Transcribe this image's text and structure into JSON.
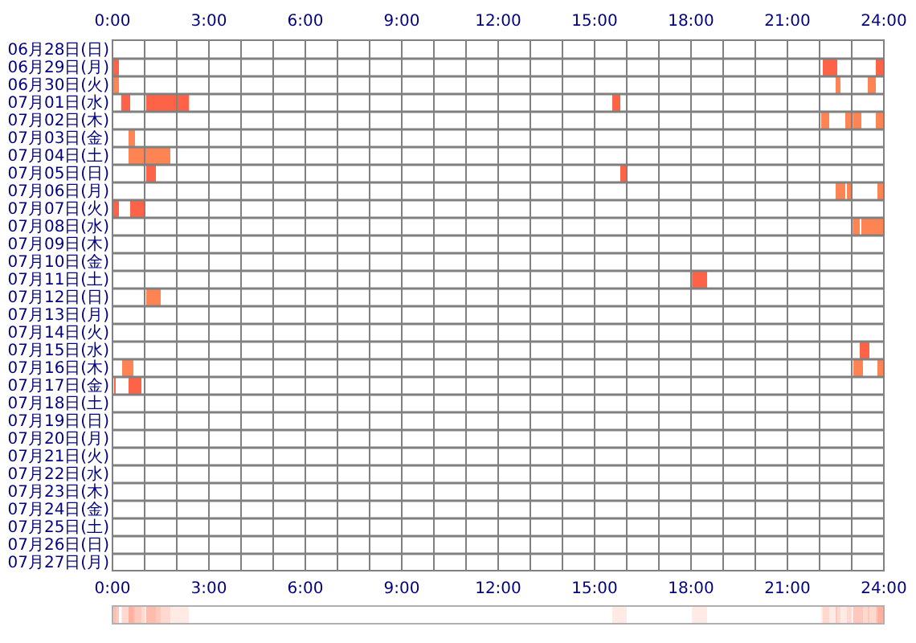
{
  "chart_data": {
    "type": "bar",
    "orientation": "horizontal",
    "categories": [
      "06月28日(日)",
      "06月29日(月)",
      "06月30日(火)",
      "07月01日(水)",
      "07月02日(木)",
      "07月03日(金)",
      "07月04日(土)",
      "07月05日(日)",
      "07月06日(月)",
      "07月07日(火)",
      "07月08日(水)",
      "07月09日(木)",
      "07月10日(金)",
      "07月11日(土)",
      "07月12日(日)",
      "07月13日(月)",
      "07月14日(火)",
      "07月15日(水)",
      "07月16日(木)",
      "07月17日(金)",
      "07月18日(土)",
      "07月19日(日)",
      "07月20日(月)",
      "07月21日(火)",
      "07月22日(水)",
      "07月23日(木)",
      "07月24日(金)",
      "07月25日(土)",
      "07月26日(日)",
      "07月27日(月)"
    ],
    "series": [
      {
        "base": [
          null,
          0,
          0,
          0.27,
          22.05,
          0.5,
          0.5,
          1.05,
          22.5,
          0,
          23.03,
          null,
          null,
          18.03,
          1.05,
          null,
          null,
          23.25,
          0.3,
          0.05,
          null,
          null,
          null,
          null,
          null,
          null,
          null,
          null,
          null,
          null
        ],
        "values": [
          null,
          0.2,
          0.2,
          0.28,
          0.25,
          0.2,
          1.3,
          0.3,
          0.3,
          0.2,
          0.22,
          null,
          null,
          0.47,
          0.45,
          null,
          null,
          0.3,
          0.35,
          0.05,
          null,
          null,
          null,
          null,
          null,
          null,
          null,
          null,
          null,
          null
        ],
        "colors": [
          null,
          "#ff6347",
          "#ff8453",
          "#ff6347",
          "#ff8453",
          "#ff8453",
          "#ff8453",
          "#ff6347",
          "#ff8453",
          "#ff6347",
          "#ff8453",
          null,
          null,
          "#ff6347",
          "#ff8453",
          null,
          null,
          "#ff6347",
          "#ff8453",
          "#ff6347",
          null,
          null,
          null,
          null,
          null,
          null,
          null,
          null,
          null,
          null
        ]
      },
      {
        "base": [
          null,
          22.1,
          22.5,
          1.05,
          22.8,
          null,
          null,
          15.8,
          22.85,
          0.55,
          23.3,
          null,
          null,
          null,
          null,
          null,
          null,
          null,
          23.05,
          0.5,
          null,
          null,
          null,
          null,
          null,
          null,
          null,
          null,
          null,
          null
        ],
        "values": [
          null,
          0.45,
          0.15,
          1.33,
          0.2,
          null,
          null,
          0.2,
          0.15,
          0.45,
          0.7,
          null,
          null,
          null,
          null,
          null,
          null,
          null,
          0.3,
          0.4,
          null,
          null,
          null,
          null,
          null,
          null,
          null,
          null,
          null,
          null
        ],
        "colors": [
          null,
          "#ff6347",
          "#ff8453",
          "#ff6347",
          "#ff8453",
          null,
          null,
          "#ff6347",
          "#ff8453",
          "#ff6347",
          "#ff8453",
          null,
          null,
          null,
          null,
          null,
          null,
          null,
          "#ff8453",
          "#ff6347",
          null,
          null,
          null,
          null,
          null,
          null,
          null,
          null,
          null,
          null
        ]
      },
      {
        "base": [
          null,
          23.75,
          23.5,
          15.55,
          23.03,
          null,
          null,
          null,
          23.8,
          null,
          null,
          null,
          null,
          null,
          null,
          null,
          null,
          null,
          23.8,
          null,
          null,
          null,
          null,
          null,
          null,
          null,
          null,
          null,
          null,
          null
        ],
        "values": [
          null,
          0.25,
          0.25,
          0.25,
          0.27,
          null,
          null,
          null,
          0.2,
          null,
          null,
          null,
          null,
          null,
          null,
          null,
          null,
          null,
          0.2,
          null,
          null,
          null,
          null,
          null,
          null,
          null,
          null,
          null,
          null,
          null
        ],
        "colors": [
          null,
          "#ff6347",
          "#ff8453",
          "#ff6347",
          "#ff8453",
          null,
          null,
          null,
          "#ff8453",
          null,
          null,
          null,
          null,
          null,
          null,
          null,
          null,
          null,
          "#ff8453",
          null,
          null,
          null,
          null,
          null,
          null,
          null,
          null,
          null,
          null,
          null
        ]
      },
      {
        "base": [
          null,
          null,
          null,
          null,
          23.75,
          null,
          null,
          null,
          null,
          null,
          null,
          null,
          null,
          null,
          null,
          null,
          null,
          null,
          null,
          null,
          null,
          null,
          null,
          null,
          null,
          null,
          null,
          null,
          null,
          null
        ],
        "values": [
          null,
          null,
          null,
          null,
          0.25,
          null,
          null,
          null,
          null,
          null,
          null,
          null,
          null,
          null,
          null,
          null,
          null,
          null,
          null,
          null,
          null,
          null,
          null,
          null,
          null,
          null,
          null,
          null,
          null,
          null
        ],
        "colors": [
          null,
          null,
          null,
          null,
          "#ff8453",
          null,
          null,
          null,
          null,
          null,
          null,
          null,
          null,
          null,
          null,
          null,
          null,
          null,
          null,
          null,
          null,
          null,
          null,
          null,
          null,
          null,
          null,
          null,
          null,
          null
        ]
      }
    ],
    "xlim": [
      0,
      24
    ],
    "xticks": [
      {
        "value": 0,
        "label": "0:00"
      },
      {
        "value": 1,
        "label": null
      },
      {
        "value": 2,
        "label": null
      },
      {
        "value": 3,
        "label": "3:00"
      },
      {
        "value": 4,
        "label": null
      },
      {
        "value": 5,
        "label": null
      },
      {
        "value": 6,
        "label": "6:00"
      },
      {
        "value": 7,
        "label": null
      },
      {
        "value": 8,
        "label": null
      },
      {
        "value": 9,
        "label": "9:00"
      },
      {
        "value": 10,
        "label": null
      },
      {
        "value": 11,
        "label": null
      },
      {
        "value": 12,
        "label": "12:00"
      },
      {
        "value": 13,
        "label": null
      },
      {
        "value": 14,
        "label": null
      },
      {
        "value": 15,
        "label": "15:00"
      },
      {
        "value": 16,
        "label": null
      },
      {
        "value": 17,
        "label": null
      },
      {
        "value": 18,
        "label": "18:00"
      },
      {
        "value": 19,
        "label": null
      },
      {
        "value": 20,
        "label": null
      },
      {
        "value": 21,
        "label": "21:00"
      },
      {
        "value": 22,
        "label": null
      },
      {
        "value": 23,
        "label": null
      },
      {
        "value": 24,
        "label": "24:00"
      }
    ],
    "x2lim": [
      0,
      24
    ],
    "x2ticks": [
      {
        "value": 0,
        "label": "0:00"
      },
      {
        "value": 3,
        "label": "3:00"
      },
      {
        "value": 6,
        "label": "6:00"
      },
      {
        "value": 9,
        "label": "9:00"
      },
      {
        "value": 12,
        "label": "12:00"
      },
      {
        "value": 15,
        "label": "15:00"
      },
      {
        "value": 18,
        "label": "18:00"
      },
      {
        "value": 21,
        "label": "21:00"
      },
      {
        "value": 24,
        "label": "24:00"
      }
    ],
    "grid": true
  }
}
